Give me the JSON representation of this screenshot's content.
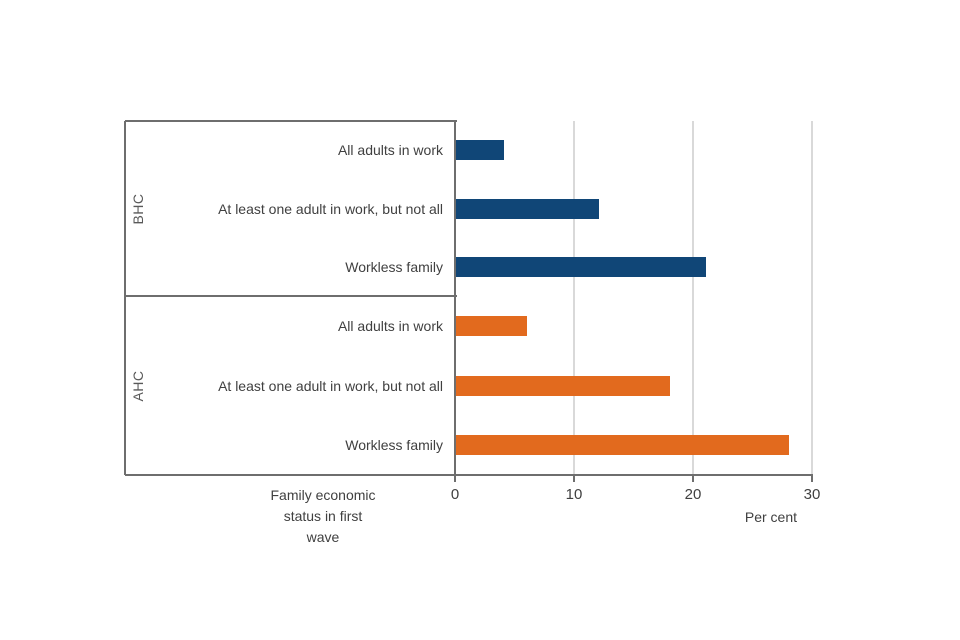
{
  "chart_data": {
    "type": "bar",
    "orientation": "horizontal",
    "title": "",
    "xlabel": "Per cent",
    "category_axis_label": "Family economic status in first wave",
    "category_axis_label_lines": [
      "Family economic",
      "status in first",
      "wave"
    ],
    "xlim": [
      0,
      30
    ],
    "xticks": [
      0,
      10,
      20,
      30
    ],
    "grid": "vertical-light",
    "legend": "none",
    "groups": [
      {
        "name": "BHC",
        "color": "#104677",
        "categories": [
          "All adults in work",
          "At least one adult in work, but not all",
          "Workless family"
        ],
        "values": [
          4,
          12,
          21
        ]
      },
      {
        "name": "AHC",
        "color": "#E26A1E",
        "categories": [
          "All adults in work",
          "At least one adult in work, but not all",
          "Workless family"
        ],
        "values": [
          6,
          18,
          28
        ]
      }
    ]
  },
  "colors": {
    "bhc_bar": "#104677",
    "ahc_bar": "#E26A1E",
    "axis_line": "#6e6e6e",
    "gridline": "#d9d9d9",
    "text": "#404040",
    "background": "#ffffff"
  }
}
